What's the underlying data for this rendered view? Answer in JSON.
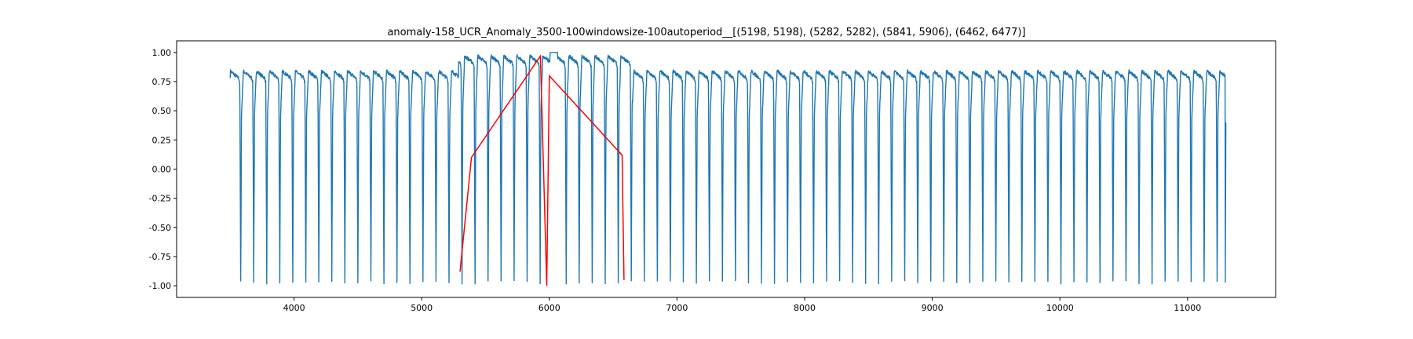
{
  "chart_data": {
    "type": "line",
    "title": "anomaly-158_UCR_Anomaly_3500-100windowsize-100autoperiod__[(5198, 5198), (5282, 5282), (5841, 5906), (6462, 6477)]",
    "xlabel": "",
    "ylabel": "",
    "xlim": [
      3080,
      11690
    ],
    "ylim": [
      -1.1,
      1.1
    ],
    "x_ticks": [
      4000,
      5000,
      6000,
      7000,
      8000,
      9000,
      10000,
      11000
    ],
    "y_ticks": [
      1.0,
      0.75,
      0.5,
      0.25,
      0.0,
      -0.25,
      -0.5,
      -0.75,
      -1.0
    ],
    "grid": false,
    "legend": "none",
    "series": [
      {
        "color": "#1f77b4",
        "signal": {
          "x_start": 3500,
          "x_end": 11300,
          "period": 102,
          "normal_peak": 0.84,
          "normal_trough": -0.97,
          "anomaly_segment": [
            5290,
            6650
          ],
          "anomaly_peak": 0.97,
          "plateau_segment": [
            6005,
            6065
          ],
          "plateau_level": 1.0,
          "end_value": 0.4
        }
      },
      {
        "color": "#ff0000",
        "points": [
          [
            5300,
            -0.88
          ],
          [
            5390,
            0.1
          ],
          [
            5930,
            0.97
          ],
          [
            5980,
            -1.0
          ],
          [
            6000,
            0.8
          ],
          [
            6570,
            0.12
          ],
          [
            6585,
            -0.95
          ]
        ]
      }
    ]
  }
}
